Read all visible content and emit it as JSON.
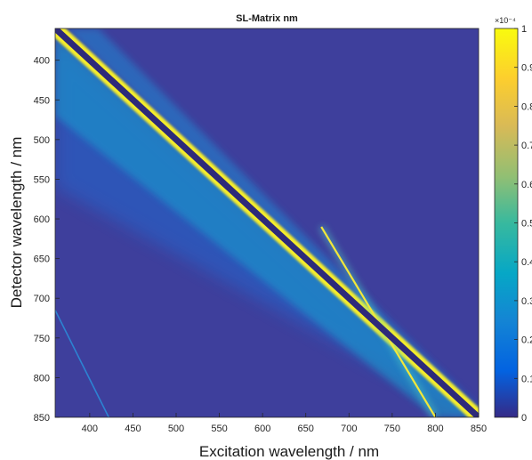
{
  "chart_data": {
    "type": "heatmap",
    "title": "SL-Matrix nm",
    "xlabel": "Excitation wavelength / nm",
    "ylabel": "Detector wavelength / nm",
    "xlim": [
      360,
      850
    ],
    "ylim": [
      850,
      360
    ],
    "x_ticks": [
      "400",
      "450",
      "500",
      "550",
      "600",
      "650",
      "700",
      "750",
      "800",
      "850"
    ],
    "y_ticks": [
      "400",
      "450",
      "500",
      "550",
      "600",
      "650",
      "700",
      "750",
      "800",
      "850"
    ],
    "colorbar": {
      "range": [
        0,
        1
      ],
      "exponent_label": "×10⁻⁴",
      "ticks": [
        "1",
        "0.9",
        "0.8",
        "0.7",
        "0.6",
        "0.5",
        "0.4",
        "0.3",
        "0.2",
        "0.1",
        "0"
      ],
      "colormap": "parula"
    },
    "features": [
      {
        "name": "first-order scatter diagonal",
        "x": [
          360,
          850
        ],
        "y": [
          360,
          850
        ],
        "intensity": 0
      },
      {
        "name": "first-order scatter edge",
        "x": [
          360,
          850
        ],
        "y": [
          360,
          850
        ],
        "intensity": 1
      },
      {
        "name": "second-order scatter line",
        "x": [
          668,
          800
        ],
        "y": [
          610,
          850
        ],
        "intensity": 1
      },
      {
        "name": "weak diagonal",
        "x": [
          360,
          422
        ],
        "y": [
          715,
          850
        ],
        "intensity": 0.4
      }
    ]
  }
}
